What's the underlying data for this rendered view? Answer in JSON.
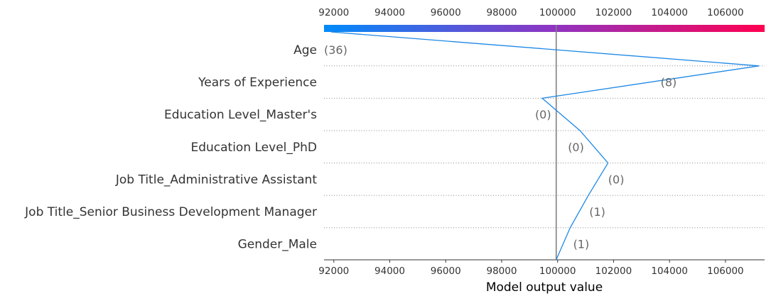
{
  "chart_data": {
    "type": "decision_plot",
    "xlabel": "Model output value",
    "xlim": [
      91650,
      107400
    ],
    "xticks": [
      92000,
      94000,
      96000,
      98000,
      100000,
      102000,
      104000,
      106000
    ],
    "xtick_labels": [
      "92000",
      "94000",
      "96000",
      "98000",
      "100000",
      "102000",
      "104000",
      "106000"
    ],
    "base_value": 99950,
    "colorbar": {
      "colors": [
        "#008bfb",
        "#8f34c2",
        "#ff0051"
      ]
    },
    "line_color": "#1e88e5",
    "features": [
      {
        "name": "Age",
        "value": "(36)",
        "path_end": 91900
      },
      {
        "name": "Years of Experience",
        "value": "(8)",
        "path_end": 107200
      },
      {
        "name": "Education Level_Master's",
        "value": "(0)",
        "path_end": 99450
      },
      {
        "name": "Education Level_PhD",
        "value": "(0)",
        "path_end": 100800
      },
      {
        "name": "Job Title_Administrative Assistant",
        "value": "(0)",
        "path_end": 101800
      },
      {
        "name": "Job Title_Senior Business Development Manager",
        "value": "(1)",
        "path_end": 101100
      },
      {
        "name": "Gender_Male",
        "value": "(1)",
        "path_end": 100450
      }
    ],
    "path_start": 99950
  }
}
